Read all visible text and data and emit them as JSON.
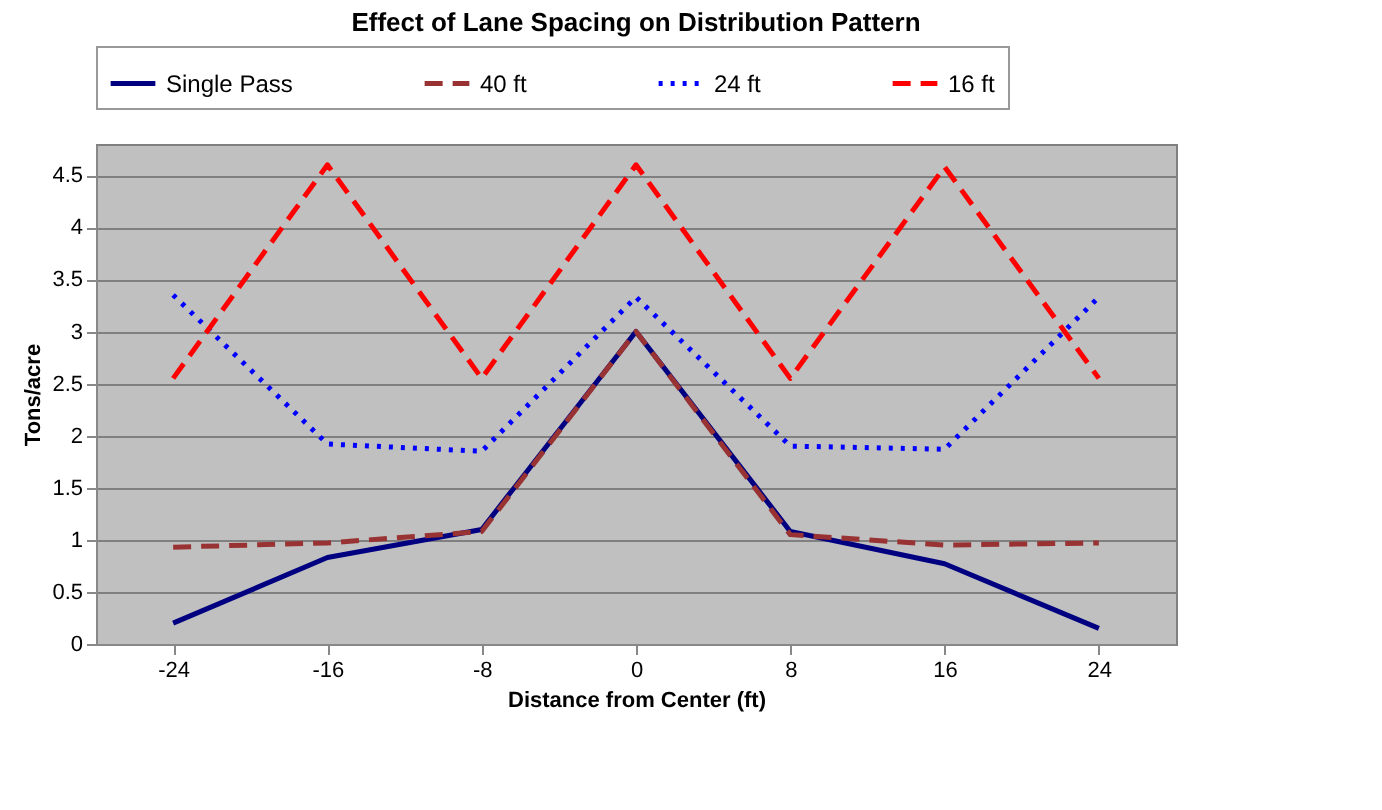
{
  "chart_data": {
    "type": "line",
    "title": "Effect of Lane Spacing on Distribution Pattern",
    "xlabel": "Distance from Center (ft)",
    "ylabel": "Tons/acre",
    "categories": [
      "-24",
      "-16",
      "-8",
      "0",
      "8",
      "16",
      "24"
    ],
    "series": [
      {
        "name": "Single Pass",
        "color": "#000080",
        "line_style": "solid",
        "values": [
          0.2,
          0.83,
          1.1,
          3.0,
          1.08,
          0.77,
          0.15
        ]
      },
      {
        "name": "40 ft",
        "color": "#993333",
        "line_style": "dashed",
        "values": [
          0.93,
          0.97,
          1.08,
          3.0,
          1.05,
          0.95,
          0.97
        ]
      },
      {
        "name": "24 ft",
        "color": "#0000ff",
        "line_style": "dotted",
        "values": [
          3.35,
          1.92,
          1.85,
          3.33,
          1.9,
          1.87,
          3.33
        ]
      },
      {
        "name": "16 ft",
        "color": "#ff0000",
        "line_style": "dashed",
        "values": [
          2.55,
          4.6,
          2.55,
          4.6,
          2.55,
          4.58,
          2.55
        ]
      }
    ],
    "ylim": [
      0,
      4.8
    ],
    "yticks": [
      0,
      0.5,
      1,
      1.5,
      2,
      2.5,
      3,
      3.5,
      4,
      4.5
    ],
    "grid": "y",
    "legend": "top",
    "marker": "none"
  }
}
